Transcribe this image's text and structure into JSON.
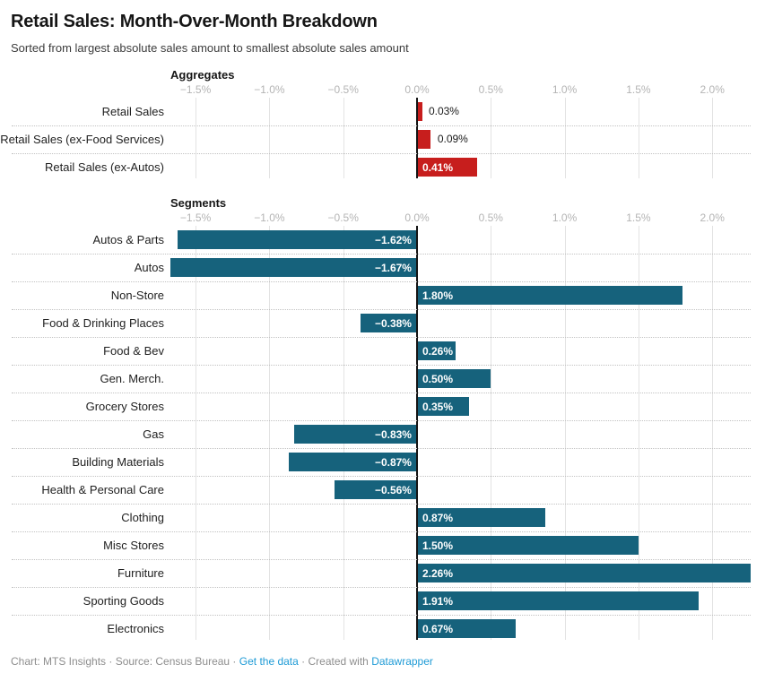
{
  "chart_data": {
    "type": "bar",
    "orientation": "horizontal",
    "title": "Retail Sales: Month-Over-Month Breakdown",
    "subtitle": "Sorted from largest absolute sales amount to smallest absolute sales amount",
    "unit": "%",
    "axis": {
      "min": -1.75,
      "max": 2.26,
      "grid": true,
      "ticks": [
        {
          "value": -1.5,
          "label": "−1.5%"
        },
        {
          "value": -1.0,
          "label": "−1.0%"
        },
        {
          "value": -0.5,
          "label": "−0.5%"
        },
        {
          "value": 0.0,
          "label": "0.0%"
        },
        {
          "value": 0.5,
          "label": "0.5%"
        },
        {
          "value": 1.0,
          "label": "1.0%"
        },
        {
          "value": 1.5,
          "label": "1.5%"
        },
        {
          "value": 2.0,
          "label": "2.0%"
        }
      ]
    },
    "colors": {
      "aggregates_bar": "#c71e1d",
      "segments_bar": "#16627c"
    },
    "groups": [
      {
        "name": "Aggregates",
        "bar_color": "#c71e1d",
        "rows": [
          {
            "category": "Retail Sales",
            "value": 0.03,
            "display": "0.03%"
          },
          {
            "category": "Retail Sales (ex-Food Services)",
            "value": 0.09,
            "display": "0.09%"
          },
          {
            "category": "Retail Sales (ex-Autos)",
            "value": 0.41,
            "display": "0.41%"
          }
        ]
      },
      {
        "name": "Segments",
        "bar_color": "#16627c",
        "rows": [
          {
            "category": "Autos & Parts",
            "value": -1.62,
            "display": "−1.62%"
          },
          {
            "category": "Autos",
            "value": -1.67,
            "display": "−1.67%"
          },
          {
            "category": "Non-Store",
            "value": 1.8,
            "display": "1.80%"
          },
          {
            "category": "Food & Drinking Places",
            "value": -0.38,
            "display": "−0.38%"
          },
          {
            "category": "Food & Bev",
            "value": 0.26,
            "display": "0.26%"
          },
          {
            "category": "Gen. Merch.",
            "value": 0.5,
            "display": "0.50%"
          },
          {
            "category": "Grocery Stores",
            "value": 0.35,
            "display": "0.35%"
          },
          {
            "category": "Gas",
            "value": -0.83,
            "display": "−0.83%"
          },
          {
            "category": "Building Materials",
            "value": -0.87,
            "display": "−0.87%"
          },
          {
            "category": "Health & Personal Care",
            "value": -0.56,
            "display": "−0.56%"
          },
          {
            "category": "Clothing",
            "value": 0.87,
            "display": "0.87%"
          },
          {
            "category": "Misc Stores",
            "value": 1.5,
            "display": "1.50%"
          },
          {
            "category": "Furniture",
            "value": 2.26,
            "display": "2.26%"
          },
          {
            "category": "Sporting Goods",
            "value": 1.91,
            "display": "1.91%"
          },
          {
            "category": "Electronics",
            "value": 0.67,
            "display": "0.67%"
          }
        ]
      }
    ]
  },
  "footer": {
    "credit": "Chart: MTS Insights · Source: Census Bureau · ",
    "get_data_link": "Get the data",
    "middle": " · Created with ",
    "datawrapper_link": "Datawrapper"
  }
}
